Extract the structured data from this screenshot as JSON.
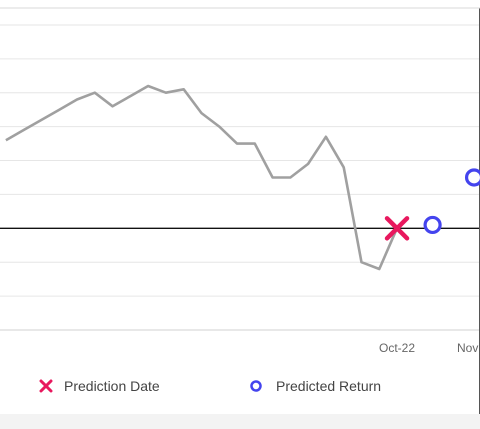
{
  "chart_data": {
    "type": "line",
    "x_ticks": [
      "Oct-22",
      "Nov"
    ],
    "baseline_y": 0,
    "ylim": [
      -3,
      6.5
    ],
    "gridlines": [
      -3,
      -2,
      -1,
      1,
      2,
      3,
      4,
      5,
      6
    ],
    "grid": true,
    "legend_position": "bottom",
    "series": [
      {
        "kind": "line",
        "color": "#a0a0a0",
        "x": [
          -32,
          -29,
          -26,
          -23,
          -20,
          -17,
          -14,
          -11,
          -8,
          -5,
          -2,
          1,
          4,
          7,
          10,
          13,
          16,
          19,
          22,
          25,
          28,
          31,
          34
        ],
        "values": [
          2.6,
          2.9,
          3.2,
          3.5,
          3.8,
          4.0,
          3.6,
          3.9,
          4.2,
          4.0,
          4.1,
          3.4,
          3.0,
          2.5,
          2.5,
          1.5,
          1.5,
          1.9,
          2.7,
          1.8,
          -1.0,
          -1.2,
          0.0
        ]
      },
      {
        "kind": "marker",
        "name": "Prediction Date",
        "marker": "x",
        "color": "#e8185e",
        "x": [
          34
        ],
        "values": [
          0.0
        ]
      },
      {
        "kind": "marker",
        "name": "Predicted Return",
        "marker": "o",
        "color": "#4444ee",
        "x": [
          40,
          47
        ],
        "values": [
          0.1,
          1.5
        ]
      }
    ],
    "xlim": [
      -33,
      48
    ],
    "x_tick_positions": [
      34,
      48
    ]
  }
}
